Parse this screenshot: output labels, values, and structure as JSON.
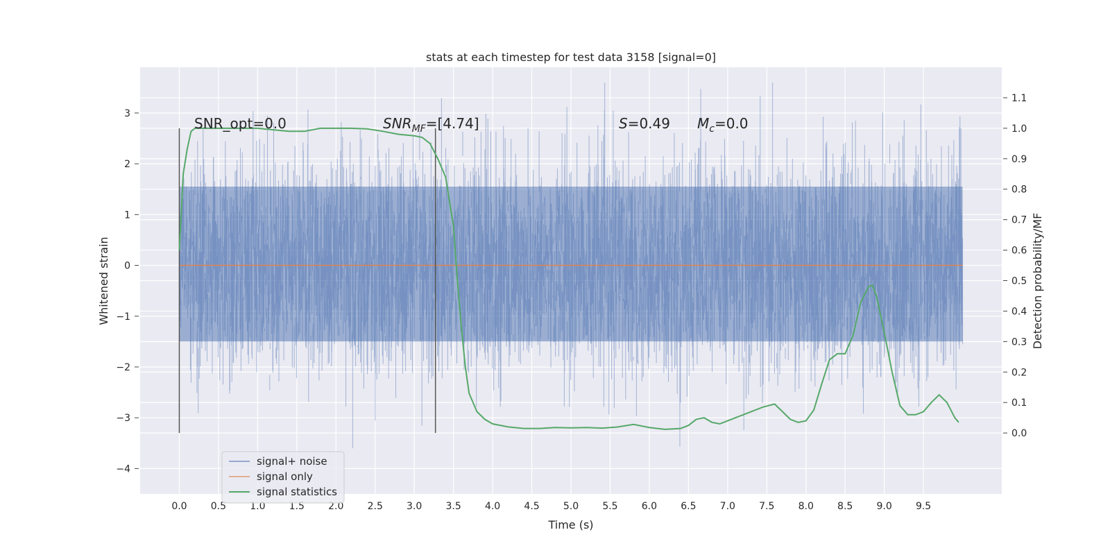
{
  "chart_data": {
    "type": "line",
    "title": "stats at each timestep for test data 3158 [signal=0]",
    "xlabel": "Time (s)",
    "ylabel": "Whitened strain",
    "ylabel_right": "Detection probability/MF",
    "xlim": [
      -0.5,
      10.5
    ],
    "ylim": [
      -4.5,
      3.9
    ],
    "ylim_right": [
      -0.2,
      1.2
    ],
    "x_ticks": [
      "0.0",
      "0.5",
      "1.0",
      "1.5",
      "2.0",
      "2.5",
      "3.0",
      "3.5",
      "4.0",
      "4.5",
      "5.0",
      "5.5",
      "6.0",
      "6.5",
      "7.0",
      "7.5",
      "8.0",
      "8.5",
      "9.0",
      "9.5"
    ],
    "y_ticks": [
      "3",
      "2",
      "1",
      "0",
      "−1",
      "−2",
      "−3",
      "−4"
    ],
    "y_ticks_right": [
      "1.1",
      "1.0",
      "0.9",
      "0.8",
      "0.7",
      "0.6",
      "0.5",
      "0.4",
      "0.3",
      "0.2",
      "0.1",
      "0.0"
    ],
    "annotations": {
      "snr_opt": "SNR_opt=0.0",
      "snr_mf_main": "SNR",
      "snr_mf_sub": "MF",
      "snr_mf_value": "=[4.74]",
      "s_main": "S",
      "s_value": "=0.49",
      "mc_main": "M",
      "mc_sub": "c",
      "mc_value": "=0.0"
    },
    "markers": [
      0.0,
      3.27
    ],
    "legend": {
      "position": "lower-left",
      "entries": [
        "signal+ noise",
        "signal only",
        "signal statistics"
      ]
    },
    "series": [
      {
        "name": "signal+ noise",
        "axis": "left",
        "color": "#4c72b0",
        "x_range": [
          0.0,
          10.0
        ],
        "amplitude": 3.6,
        "dense_band": [
          -1.5,
          1.55
        ]
      },
      {
        "name": "signal only",
        "axis": "left",
        "color": "#dd8452",
        "x": [
          0.0,
          10.0
        ],
        "y": [
          0.0,
          0.0
        ]
      },
      {
        "name": "signal statistics",
        "axis": "right",
        "color": "#55a868",
        "x": [
          0.0,
          0.05,
          0.1,
          0.15,
          0.2,
          0.3,
          0.5,
          0.7,
          1.0,
          1.2,
          1.4,
          1.6,
          1.8,
          2.0,
          2.2,
          2.4,
          2.6,
          2.8,
          3.0,
          3.1,
          3.2,
          3.3,
          3.4,
          3.5,
          3.55,
          3.6,
          3.65,
          3.7,
          3.8,
          3.9,
          4.0,
          4.2,
          4.4,
          4.6,
          4.8,
          5.0,
          5.2,
          5.4,
          5.6,
          5.8,
          6.0,
          6.2,
          6.4,
          6.5,
          6.6,
          6.7,
          6.8,
          6.9,
          7.0,
          7.1,
          7.3,
          7.45,
          7.6,
          7.7,
          7.8,
          7.9,
          8.0,
          8.1,
          8.2,
          8.3,
          8.4,
          8.5,
          8.6,
          8.7,
          8.8,
          8.85,
          8.9,
          9.0,
          9.1,
          9.2,
          9.3,
          9.4,
          9.5,
          9.6,
          9.7,
          9.8,
          9.9,
          9.95
        ],
        "y": [
          0.6,
          0.85,
          0.93,
          0.99,
          1.0,
          1.0,
          1.0,
          1.0,
          1.0,
          0.995,
          0.99,
          0.99,
          1.0,
          1.0,
          1.0,
          0.998,
          0.99,
          0.98,
          0.975,
          0.97,
          0.95,
          0.9,
          0.84,
          0.68,
          0.5,
          0.35,
          0.22,
          0.13,
          0.07,
          0.045,
          0.03,
          0.02,
          0.015,
          0.015,
          0.018,
          0.017,
          0.018,
          0.016,
          0.02,
          0.028,
          0.018,
          0.012,
          0.015,
          0.025,
          0.045,
          0.05,
          0.035,
          0.03,
          0.04,
          0.05,
          0.07,
          0.085,
          0.095,
          0.07,
          0.045,
          0.035,
          0.04,
          0.075,
          0.16,
          0.24,
          0.26,
          0.26,
          0.32,
          0.43,
          0.48,
          0.485,
          0.45,
          0.33,
          0.2,
          0.09,
          0.06,
          0.06,
          0.07,
          0.1,
          0.125,
          0.1,
          0.05,
          0.035
        ]
      }
    ]
  }
}
